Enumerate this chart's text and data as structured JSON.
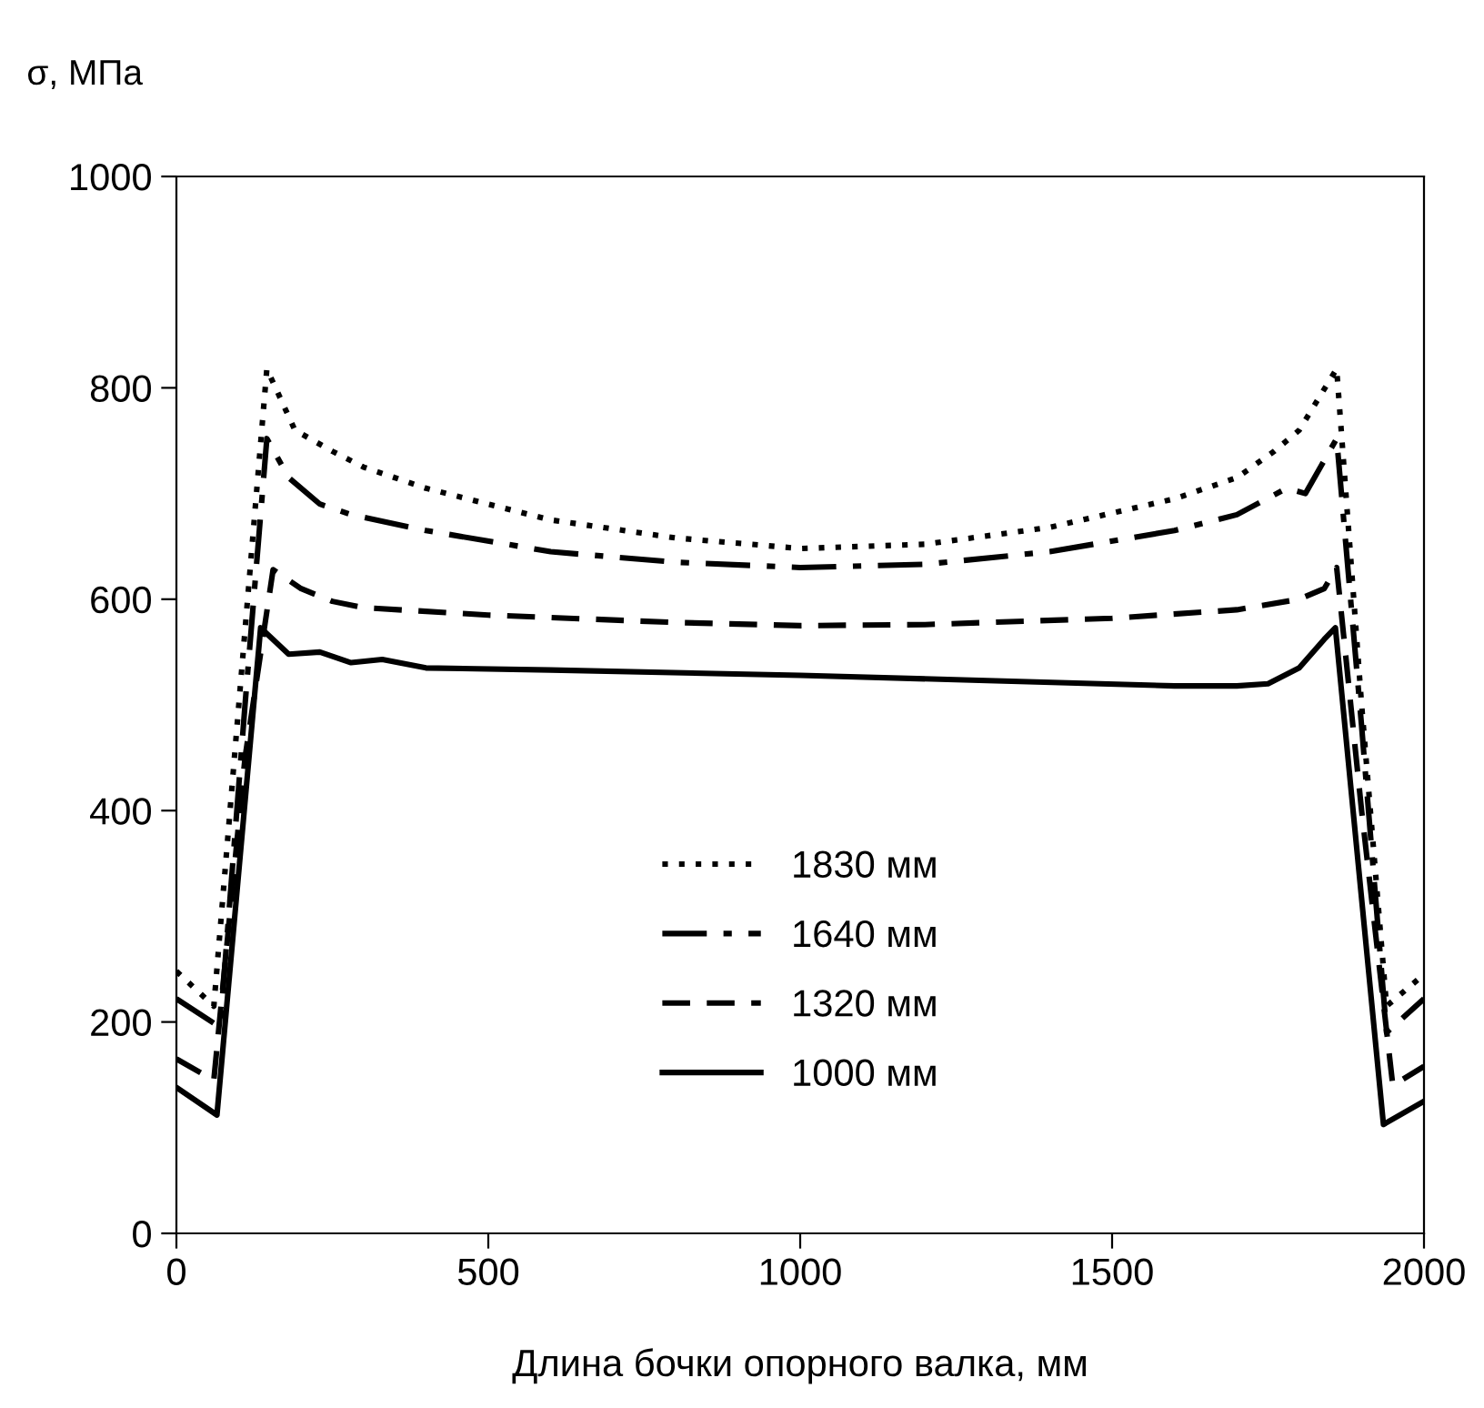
{
  "chart_data": {
    "type": "line",
    "xlabel": "Длина бочки опорного валка, мм",
    "ylabel": "σ, МПа",
    "xlim": [
      0,
      2000
    ],
    "xticks": [
      0,
      500,
      1000,
      1500,
      2000
    ],
    "ylim": [
      0,
      1000
    ],
    "yticks": [
      0,
      200,
      400,
      600,
      800,
      1000
    ],
    "grid": false,
    "legend": "bottom",
    "color": "#000000",
    "series": [
      {
        "name": "1830 мм",
        "line_style": "dotted",
        "x": [
          0,
          60,
          100,
          145,
          190,
          250,
          300,
          400,
          600,
          800,
          1000,
          1200,
          1400,
          1600,
          1700,
          1760,
          1800,
          1860,
          1900,
          1940,
          2000
        ],
        "values": [
          248,
          215,
          500,
          818,
          760,
          740,
          725,
          705,
          675,
          658,
          648,
          652,
          668,
          695,
          715,
          740,
          760,
          818,
          500,
          215,
          245
        ]
      },
      {
        "name": "1640 мм",
        "line_style": "dashdot",
        "x": [
          0,
          70,
          110,
          145,
          180,
          230,
          280,
          400,
          600,
          800,
          1000,
          1200,
          1400,
          1600,
          1700,
          1780,
          1810,
          1860,
          1900,
          1940,
          2000
        ],
        "values": [
          222,
          195,
          500,
          752,
          715,
          690,
          680,
          665,
          645,
          635,
          630,
          633,
          645,
          665,
          680,
          705,
          700,
          752,
          480,
          190,
          222
        ]
      },
      {
        "name": "1320 мм",
        "line_style": "dashed",
        "x": [
          0,
          60,
          110,
          155,
          200,
          250,
          300,
          500,
          800,
          1000,
          1200,
          1500,
          1700,
          1800,
          1840,
          1860,
          1900,
          1950,
          2000
        ],
        "values": [
          165,
          145,
          450,
          628,
          610,
          598,
          592,
          585,
          578,
          575,
          576,
          582,
          590,
          600,
          610,
          630,
          400,
          140,
          158
        ]
      },
      {
        "name": "1000 мм",
        "line_style": "solid",
        "x": [
          0,
          65,
          135,
          180,
          230,
          280,
          330,
          400,
          600,
          1000,
          1300,
          1600,
          1700,
          1750,
          1800,
          1840,
          1858,
          1935,
          2000
        ],
        "values": [
          138,
          112,
          573,
          548,
          550,
          540,
          543,
          535,
          533,
          528,
          523,
          518,
          518,
          520,
          535,
          562,
          573,
          103,
          125
        ]
      }
    ]
  }
}
